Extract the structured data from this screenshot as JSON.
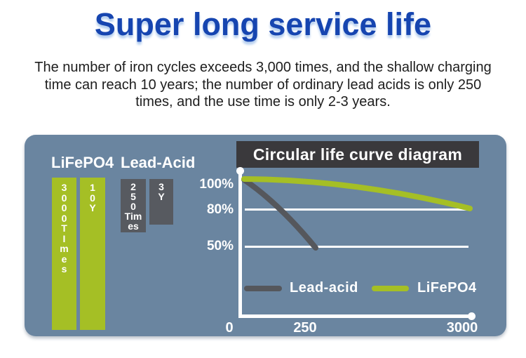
{
  "page": {
    "title": "Super long service life",
    "paragraph_lines": [
      "The number of iron cycles exceeds 3,000 times, and the shallow charging",
      "time can reach 10 years; the number of ordinary lead acids is only 250",
      "times, and the use time is only 2-3 years."
    ]
  },
  "comparison": {
    "groups": [
      {
        "label": "LiFePO4"
      },
      {
        "label": "Lead-Acid"
      }
    ],
    "bars": [
      {
        "group": "LiFePO4",
        "value_text": "3000TImes",
        "lines": [
          "3",
          "0",
          "0",
          "0",
          "T",
          "I",
          "m",
          "e",
          "s"
        ]
      },
      {
        "group": "LiFePO4",
        "value_text": "10Y",
        "lines": [
          "1",
          "0",
          "Y"
        ]
      },
      {
        "group": "Lead-Acid",
        "value_text": "250Times",
        "lines": [
          "2",
          "5",
          "0",
          "Tim",
          "es"
        ]
      },
      {
        "group": "Lead-Acid",
        "value_text": "3Y",
        "lines": [
          "3",
          "Y"
        ]
      }
    ]
  },
  "chart": {
    "title": "Circular life curve diagram",
    "y_axis_labels": [
      "100%",
      "80%",
      "50%"
    ],
    "x_axis_labels": [
      "0",
      "250",
      "3000"
    ],
    "legend": [
      {
        "name": "Lead-acid",
        "color": "#55575c"
      },
      {
        "name": "LiFePO4",
        "color": "#a5bf25"
      }
    ]
  },
  "colors": {
    "title_blue": "#1645b0",
    "panel_background": "#6a85a0",
    "lifepo4_green": "#a5bf25",
    "lead_acid_gray": "#575a60",
    "chart_banner_dark": "#3a393c",
    "axis_white": "#ffffff"
  },
  "chart_data": [
    {
      "type": "bar",
      "title": "",
      "groups": [
        {
          "name": "LiFePO4",
          "bars": [
            {
              "label": "3000TImes",
              "value": 3000,
              "unit": "times"
            },
            {
              "label": "10Y",
              "value": 10,
              "unit": "years"
            }
          ]
        },
        {
          "name": "Lead-Acid",
          "bars": [
            {
              "label": "250Times",
              "value": 250,
              "unit": "times"
            },
            {
              "label": "3Y",
              "value": 3,
              "unit": "years"
            }
          ]
        }
      ],
      "note_visible": "stylized bars; green LiFePO4 bars drawn much taller than gray Lead-Acid bars"
    },
    {
      "type": "line",
      "title": "Circular life curve diagram",
      "x_ticks": [
        "0",
        "250",
        "3000"
      ],
      "y_ticks": [
        "100%",
        "80%",
        "50%"
      ],
      "xlim": [
        0,
        3000
      ],
      "x_scale": "nonlinear as drawn (250 tick at ~29% of axis length)",
      "grid": "horizontal white lines at 80% and 50%",
      "legend_position": "bottom-inside",
      "series": [
        {
          "name": "Lead-acid",
          "color": "#55575c",
          "x": [
            0,
            150,
            280
          ],
          "y_percent": [
            100,
            80,
            50
          ]
        },
        {
          "name": "LiFePO4",
          "color": "#a5bf25",
          "x": [
            0,
            1500,
            3000
          ],
          "y_percent": [
            100,
            92,
            82
          ]
        }
      ]
    }
  ]
}
